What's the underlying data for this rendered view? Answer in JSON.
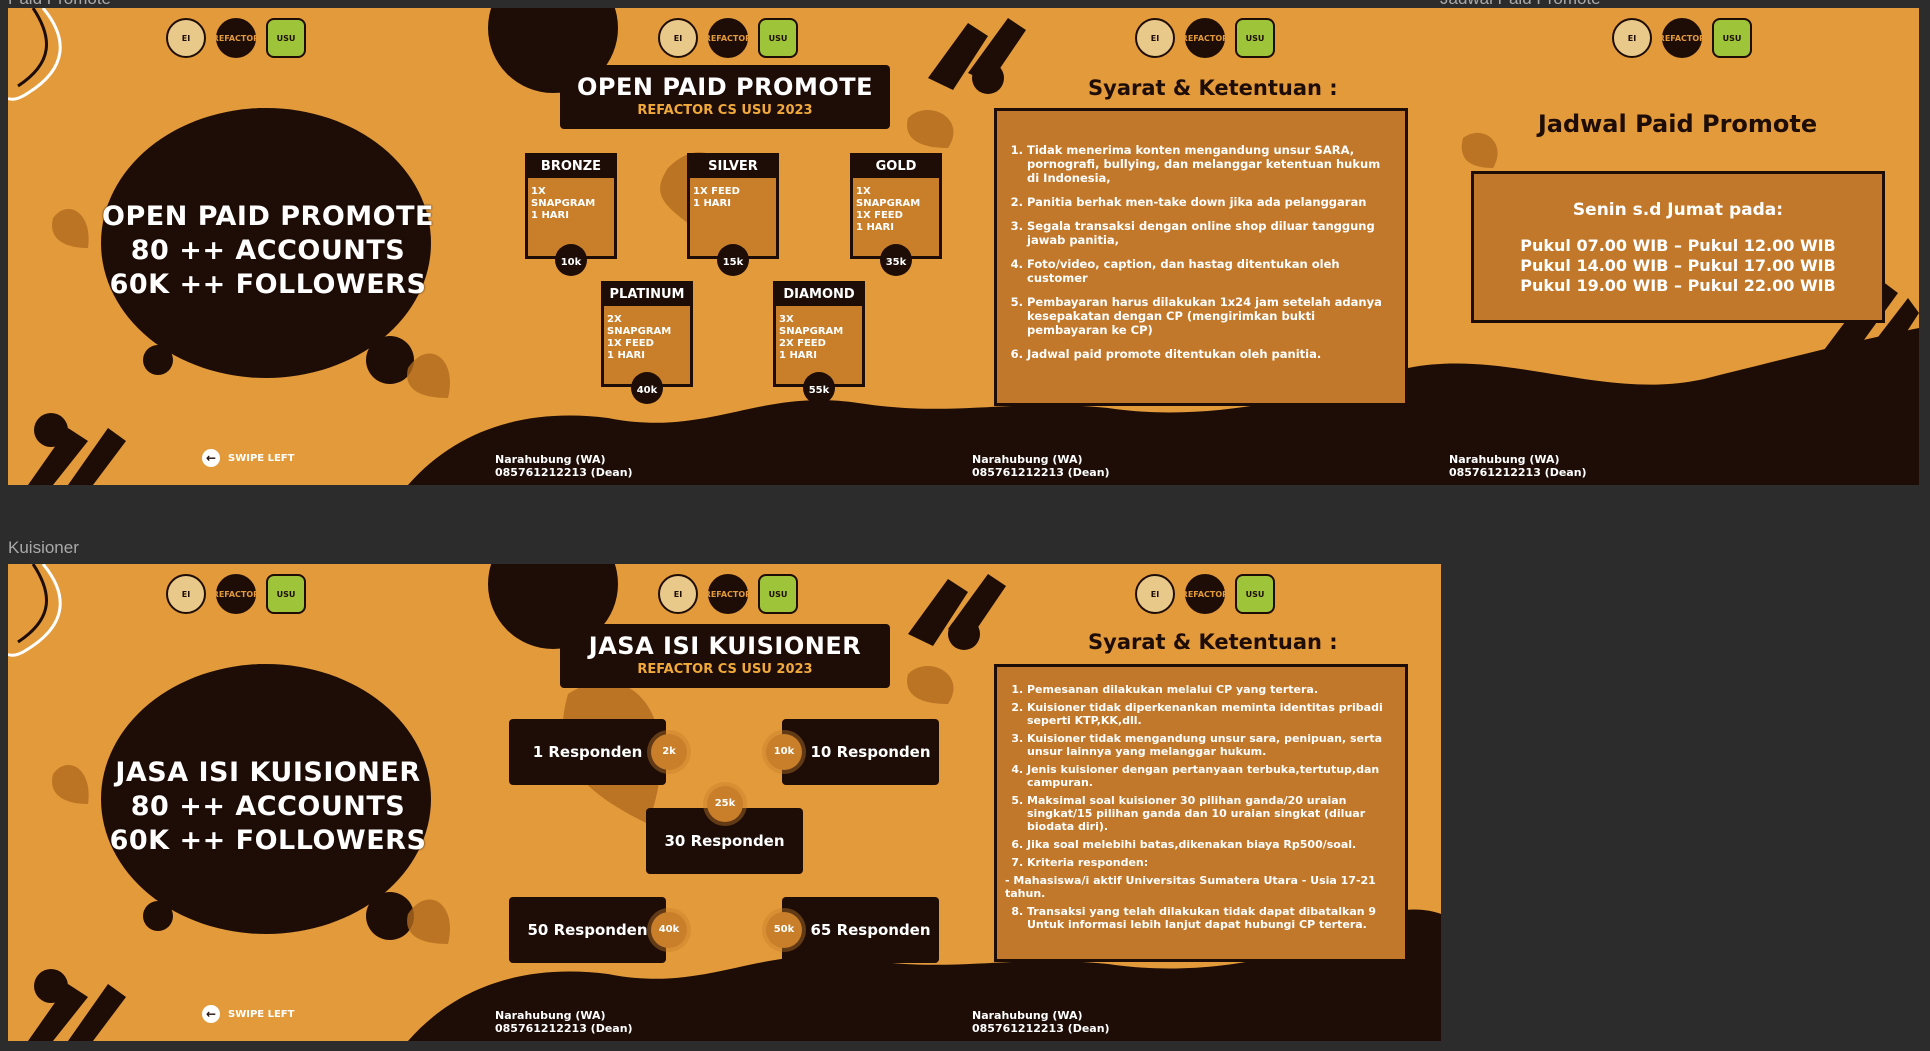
{
  "frames": {
    "top_label": "Paid Promote",
    "top_right_label": "Jadwal Paid Promote",
    "bottom_label": "Kuisioner"
  },
  "promote": {
    "s1": {
      "line1": "OPEN PAID PROMOTE",
      "line2": "80 ++ ACCOUNTS",
      "line3": "60K ++ FOLLOWERS",
      "swipe": "SWIPE LEFT"
    },
    "s2": {
      "title": "OPEN PAID PROMOTE",
      "subtitle": "REFACTOR CS USU 2023",
      "packages": [
        {
          "name": "BRONZE",
          "desc": "1X SNAPGRAM\n1 HARI",
          "price": "10k"
        },
        {
          "name": "SILVER",
          "desc": "1X FEED\n1 HARI",
          "price": "15k"
        },
        {
          "name": "GOLD",
          "desc": "1X SNAPGRAM\n1X FEED\n1 HARI",
          "price": "35k"
        },
        {
          "name": "PLATINUM",
          "desc": "2X SNAPGRAM\n1X FEED\n1 HARI",
          "price": "40k"
        },
        {
          "name": "DIAMOND",
          "desc": "3X SNAPGRAM\n2X FEED\n1 HARI",
          "price": "55k"
        }
      ]
    },
    "s3": {
      "title": "Syarat & Ketentuan :",
      "items": [
        "Tidak menerima konten mengandung unsur SARA, pornografi, bullying, dan melanggar ketentuan hukum di Indonesia,",
        "Panitia berhak men-take down jika ada pelanggaran",
        "Segala transaksi dengan online shop diluar tanggung jawab panitia,",
        "Foto/video, caption, dan hastag ditentukan oleh customer",
        "Pembayaran harus dilakukan 1x24 jam setelah adanya kesepakatan dengan CP (mengirimkan bukti pembayaran ke CP)",
        "Jadwal paid promote ditentukan oleh panitia."
      ]
    },
    "s4": {
      "title": "Jadwal Paid Promote",
      "days": "Senin s.d Jumat pada:",
      "times": [
        "Pukul 07.00 WIB – Pukul 12.00 WIB",
        "Pukul 14.00 WIB – Pukul 17.00 WIB",
        "Pukul 19.00 WIB – Pukul 22.00 WIB"
      ]
    }
  },
  "contact": {
    "label": "Narahubung (WA)",
    "phone": "085761212213 (Dean)"
  },
  "kuis": {
    "s1": {
      "line1": "JASA ISI KUISIONER",
      "line2": "80 ++ ACCOUNTS",
      "line3": "60K ++ FOLLOWERS",
      "swipe": "SWIPE LEFT"
    },
    "s2": {
      "title": "JASA ISI KUISIONER",
      "subtitle": "REFACTOR CS USU 2023",
      "packages": [
        {
          "label": "1 Responden",
          "price": "2k"
        },
        {
          "label": "10 Responden",
          "price": "10k"
        },
        {
          "label": "30 Responden",
          "price": "25k"
        },
        {
          "label": "50 Responden",
          "price": "40k"
        },
        {
          "label": "65 Responden",
          "price": "50k"
        }
      ]
    },
    "s3": {
      "title": "Syarat & Ketentuan :",
      "items": [
        "Pemesanan dilakukan melalui CP yang tertera.",
        "Kuisioner tidak diperkenankan meminta identitas pribadi seperti KTP,KK,dll.",
        "Kuisioner tidak mengandung unsur sara, penipuan, serta unsur lainnya yang melanggar hukum.",
        "Jenis kuisioner dengan pertanyaan terbuka,tertutup,dan campuran.",
        "Maksimal soal kuisioner 30 pilihan ganda/20 uraian singkat/15 pilihan ganda dan 10 uraian singkat (diluar biodata diri).",
        "Jika soal melebihi batas,dikenakan biaya Rp500/soal.",
        "Kriteria responden:",
        "Transaksi yang telah dilakukan tidak dapat dibatalkan 9 Untuk informasi lebih lanjut dapat hubungi CP tertera."
      ],
      "sub": "- Mahasiswa/i aktif Universitas Sumatera Utara - Usia 17-21 tahun."
    }
  },
  "logos": [
    "EI",
    "REFACTOR",
    "USU"
  ]
}
